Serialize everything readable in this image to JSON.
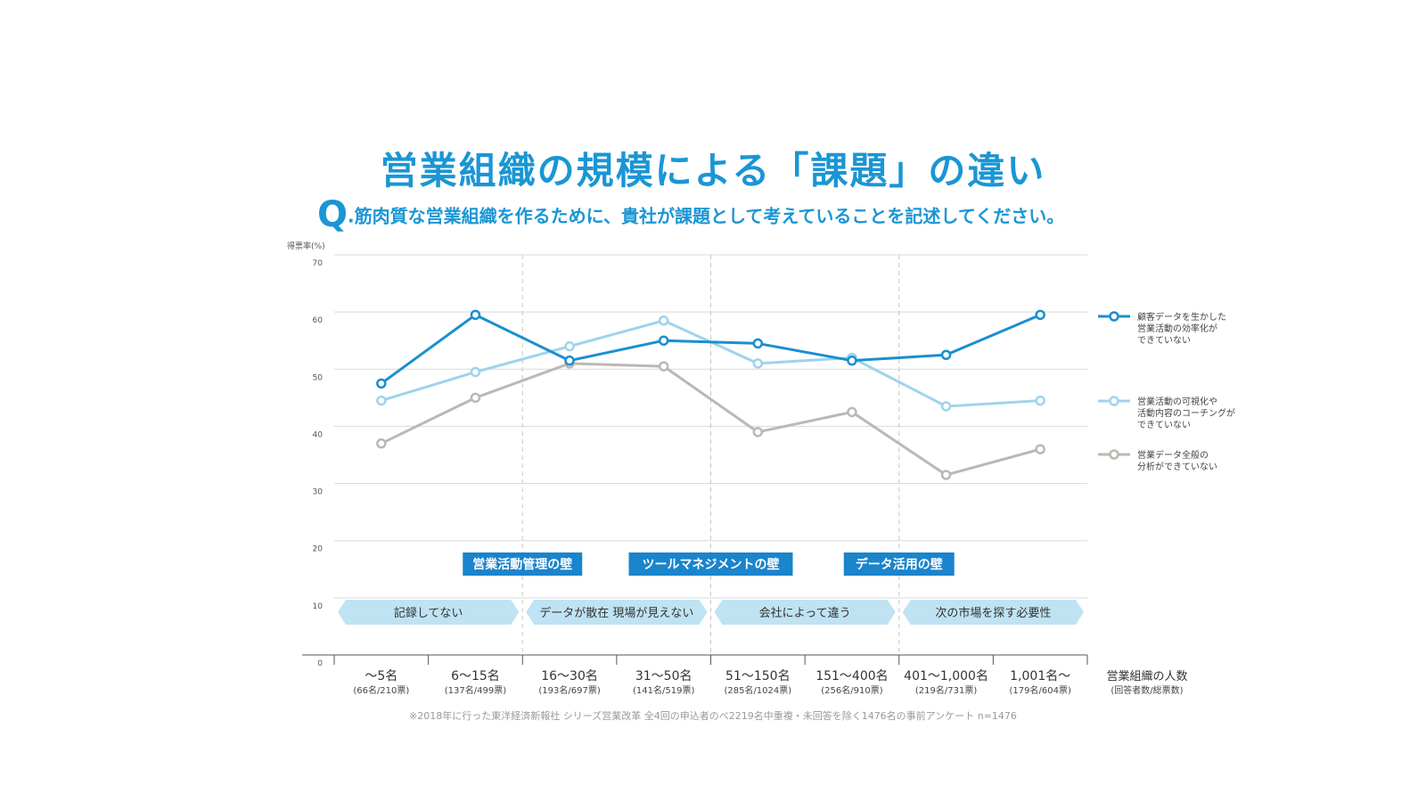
{
  "title": "営業組織の規模による「課題」の違い",
  "question": {
    "mark": "Q",
    "text": ".筋肉質な営業組織を作るために、貴社が課題として考えていることを記述してください。"
  },
  "footnote": "※2018年に行った東洋経済新報社 シリーズ営業改革 全4回の申込者のべ2219名中重複・未回答を除く1476名の事前アンケート n=1476",
  "chart_data": {
    "type": "line",
    "ylabel": "得票率(%)",
    "ylim": [
      0,
      70
    ],
    "yticks": [
      "0",
      "10",
      "20",
      "30",
      "40",
      "50",
      "60",
      "70"
    ],
    "categories": [
      {
        "label": "〜5名",
        "sub": "(66名/210票)"
      },
      {
        "label": "6〜15名",
        "sub": "(137名/499票)"
      },
      {
        "label": "16〜30名",
        "sub": "(193名/697票)"
      },
      {
        "label": "31〜50名",
        "sub": "(141名/519票)"
      },
      {
        "label": "51〜150名",
        "sub": "(285名/1024票)"
      },
      {
        "label": "151〜400名",
        "sub": "(256名/910票)"
      },
      {
        "label": "401〜1,000名",
        "sub": "(219名/731票)"
      },
      {
        "label": "1,001名〜",
        "sub": "(179名/604票)"
      }
    ],
    "xlabel": "営業組織の人数",
    "xlabel_sub": "(回答者数/総票数)",
    "series": [
      {
        "name": "顧客データを生かした営業活動の効率化ができていない",
        "legend": [
          "顧客データを生かした",
          "営業活動の効率化が",
          "できていない"
        ],
        "color": "#1a8fd0",
        "values": [
          47.5,
          59.5,
          51.5,
          55,
          54.5,
          51.5,
          52.5,
          59.5
        ]
      },
      {
        "name": "営業活動の可視化や活動内容のコーチングができていない",
        "legend": [
          "営業活動の可視化や",
          "活動内容のコーチングが",
          "できていない"
        ],
        "color": "#9fd3ec",
        "values": [
          44.5,
          49.5,
          54,
          58.5,
          51,
          52,
          43.5,
          44.5
        ]
      },
      {
        "name": "営業データ全般の分析ができていない",
        "legend": [
          "営業データ全般の",
          "分析ができていない"
        ],
        "color": "#bdb7b3",
        "values": [
          37,
          45,
          51,
          50.5,
          39,
          42.5,
          31.5,
          36
        ]
      }
    ],
    "walls": [
      "営業活動管理の壁",
      "ツールマネジメントの壁",
      "データ活用の壁"
    ],
    "stages": [
      "記録してない",
      "データが散在 現場が見えない",
      "会社によって違う",
      "次の市場を探す必要性"
    ],
    "legend_position": "right"
  },
  "colors": {
    "accent": "#1a96d4",
    "wall_bg": "#1a84cc",
    "stage_bg": "#bfe3f3"
  }
}
